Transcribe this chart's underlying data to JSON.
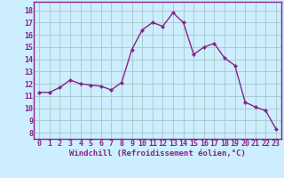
{
  "x": [
    0,
    1,
    2,
    3,
    4,
    5,
    6,
    7,
    8,
    9,
    10,
    11,
    12,
    13,
    14,
    15,
    16,
    17,
    18,
    19,
    20,
    21,
    22,
    23
  ],
  "y": [
    11.3,
    11.3,
    11.7,
    12.3,
    12.0,
    11.9,
    11.8,
    11.5,
    12.1,
    14.8,
    16.4,
    17.0,
    16.7,
    17.8,
    17.0,
    14.4,
    15.0,
    15.3,
    14.1,
    13.5,
    10.5,
    10.1,
    9.8,
    8.3
  ],
  "line_color": "#882288",
  "marker": "D",
  "marker_size": 2.2,
  "linewidth": 1.0,
  "bg_color": "#cceeff",
  "grid_color": "#aacccc",
  "xlabel": "Windchill (Refroidissement éolien,°C)",
  "xlabel_fontsize": 6.5,
  "xtick_labels": [
    "0",
    "1",
    "2",
    "3",
    "4",
    "5",
    "6",
    "7",
    "8",
    "9",
    "10",
    "11",
    "12",
    "13",
    "14",
    "15",
    "16",
    "17",
    "18",
    "19",
    "20",
    "21",
    "22",
    "23"
  ],
  "ytick_min": 8,
  "ytick_max": 18,
  "ytick_step": 1,
  "xlim": [
    -0.5,
    23.5
  ],
  "ylim": [
    7.5,
    18.7
  ],
  "tick_fontsize": 6.0
}
